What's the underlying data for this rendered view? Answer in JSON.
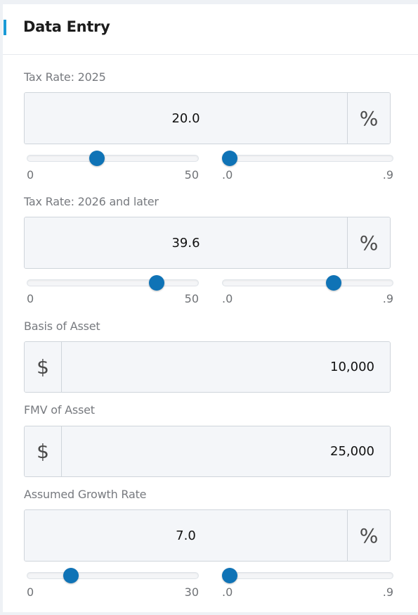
{
  "panel": {
    "title": "Data Entry"
  },
  "tax_2025": {
    "label": "Tax Rate: 2025",
    "value": "20.0",
    "unit": "%",
    "whole_slider": {
      "value": 20,
      "min": "0",
      "max": "50",
      "min_val": 0,
      "max_val": 50
    },
    "decimal_slider": {
      "value": 0,
      "min": ".0",
      "max": ".9",
      "min_val": 0,
      "max_val": 0.9
    }
  },
  "tax_2026": {
    "label": "Tax Rate: 2026 and later",
    "value": "39.6",
    "unit": "%",
    "whole_slider": {
      "value": 39,
      "min": "0",
      "max": "50",
      "min_val": 0,
      "max_val": 50
    },
    "decimal_slider": {
      "value": 0.6,
      "min": ".0",
      "max": ".9",
      "min_val": 0,
      "max_val": 0.9
    }
  },
  "basis": {
    "label": "Basis of Asset",
    "currency": "$",
    "value": "10,000"
  },
  "fmv": {
    "label": "FMV of Asset",
    "currency": "$",
    "value": "25,000"
  },
  "growth": {
    "label": "Assumed Growth Rate",
    "value": "7.0",
    "unit": "%",
    "whole_slider": {
      "value": 7,
      "min": "0",
      "max": "30",
      "min_val": 0,
      "max_val": 30
    },
    "decimal_slider": {
      "value": 0,
      "min": ".0",
      "max": ".9",
      "min_val": 0,
      "max_val": 0.9
    }
  },
  "colors": {
    "accent": "#1a9ad6",
    "thumb": "#0f73b6",
    "field_bg": "#f4f6f9"
  }
}
